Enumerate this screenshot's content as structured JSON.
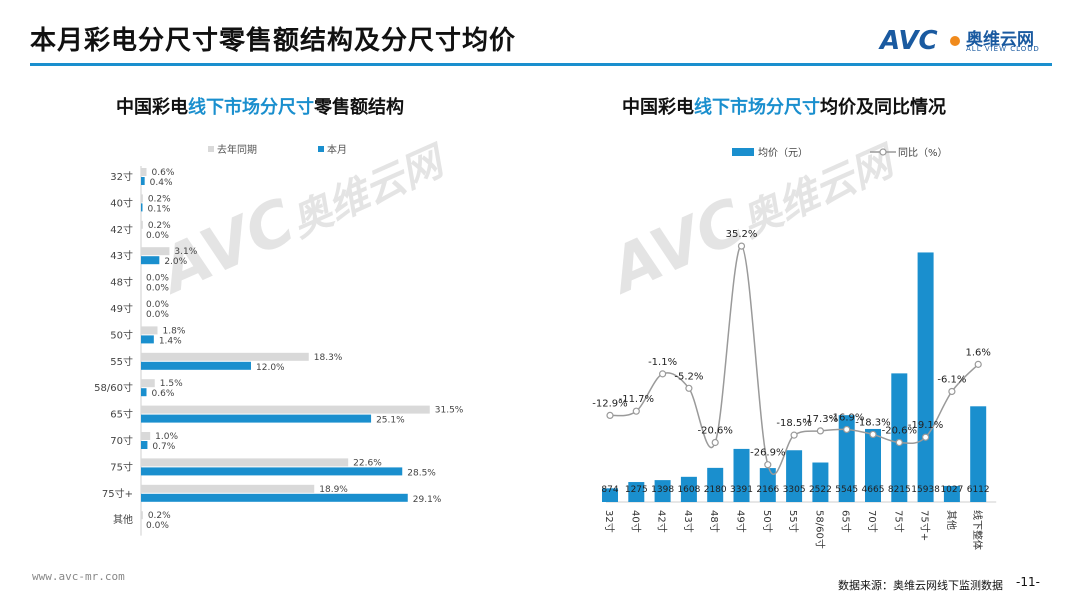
{
  "header": {
    "title": "本月彩电分尺寸零售额结构及分尺寸均价"
  },
  "logo": {
    "mark": "AVC",
    "cn": "奥维云网",
    "en": "ALL VIEW CLOUD"
  },
  "left_title": {
    "prefix": "中国彩电",
    "highlight": "线下市场分尺寸",
    "suffix": "零售额结构"
  },
  "right_title": {
    "prefix": "中国彩电",
    "highlight": "线下市场分尺寸",
    "suffix": "均价及同比情况"
  },
  "footer": {
    "url": "www.avc-mr.com",
    "source": "数据来源：奥维云网线下监测数据",
    "page": "-11-"
  },
  "colors": {
    "accent": "#1a8fce",
    "bar_prev": "#d9d9d9",
    "line": "#9a9a9a",
    "text": "#222222"
  },
  "chart_data": [
    {
      "type": "bar",
      "orientation": "horizontal",
      "categories": [
        "32寸",
        "40寸",
        "42寸",
        "43寸",
        "48寸",
        "49寸",
        "50寸",
        "55寸",
        "58/60寸",
        "65寸",
        "70寸",
        "75寸",
        "75寸+",
        "其他"
      ],
      "series": [
        {
          "name": "去年同期",
          "color": "#d9d9d9",
          "values": [
            0.6,
            0.2,
            0.2,
            3.1,
            0.0,
            0.0,
            1.8,
            18.3,
            1.5,
            31.5,
            1.0,
            22.6,
            18.9,
            0.2
          ],
          "labels": [
            "0.6%",
            "0.2%",
            "0.2%",
            "3.1%",
            "0.0%",
            "0.0%",
            "1.8%",
            "18.3%",
            "1.5%",
            "31.5%",
            "1.0%",
            "22.6%",
            "18.9%",
            "0.2%"
          ]
        },
        {
          "name": "本月",
          "color": "#1a8fce",
          "values": [
            0.4,
            0.1,
            0.0,
            2.0,
            0.0,
            0.0,
            1.4,
            12.0,
            0.6,
            25.1,
            0.7,
            28.5,
            29.1,
            0.0
          ],
          "labels": [
            "0.4%",
            "0.1%",
            "0.0%",
            "2.0%",
            "0.0%",
            "0.0%",
            "1.4%",
            "12.0%",
            "0.6%",
            "25.1%",
            "0.7%",
            "28.5%",
            "29.1%",
            "0.0%"
          ]
        }
      ],
      "legend": "top",
      "xlim": [
        0,
        36
      ]
    },
    {
      "type": "bar+line",
      "categories": [
        "32寸",
        "40寸",
        "42寸",
        "43寸",
        "48寸",
        "49寸",
        "50寸",
        "55寸",
        "58/60寸",
        "65寸",
        "70寸",
        "75寸",
        "75寸+",
        "其他",
        "线下整体"
      ],
      "series": [
        {
          "name": "均价（元）",
          "type": "bar",
          "color": "#1a8fce",
          "values": [
            874,
            1275,
            1398,
            1608,
            2180,
            3391,
            2166,
            3305,
            2522,
            5545,
            4665,
            8215,
            15938,
            1027,
            6112
          ],
          "labels": [
            "874",
            "1275",
            "1398",
            "1608",
            "2180",
            "3391",
            "2166",
            "3305",
            "2522",
            "5545",
            "4665",
            "8215",
            "15938",
            "1027",
            "6112"
          ]
        },
        {
          "name": "同比（%）",
          "type": "line",
          "color": "#9a9a9a",
          "values": [
            -12.9,
            -11.7,
            -1.1,
            -5.2,
            -20.6,
            35.2,
            -26.9,
            -18.5,
            -17.3,
            -16.9,
            -18.3,
            -20.6,
            -19.1,
            -6.1,
            1.6
          ],
          "labels": [
            "-12.9%",
            "-11.7%",
            "-1.1%",
            "-5.2%",
            "-20.6%",
            "35.2%",
            "-26.9%",
            "-18.5%",
            "-17.3%",
            "-16.9%",
            "-18.3%",
            "-20.6%",
            "-19.1%",
            "-6.1%",
            "1.6%"
          ]
        }
      ],
      "legend": "top",
      "bar_ylim": [
        0,
        17500
      ],
      "line_ylim": [
        -40,
        40
      ]
    }
  ]
}
